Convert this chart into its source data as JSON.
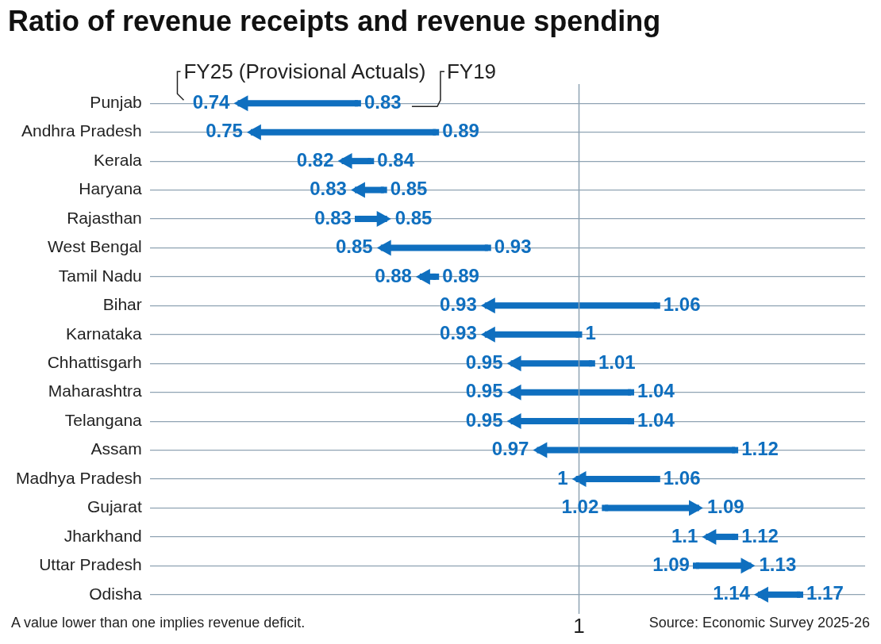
{
  "chart_data": {
    "type": "scatter",
    "orientation": "horizontal",
    "title": "Ratio of revenue receipts and revenue spending",
    "categories": [
      "Punjab",
      "Andhra Pradesh",
      "Kerala",
      "Haryana",
      "Rajasthan",
      "West Bengal",
      "Tamil Nadu",
      "Bihar",
      "Karnataka",
      "Chhattisgarh",
      "Maharashtra",
      "Telangana",
      "Assam",
      "Madhya Pradesh",
      "Gujarat",
      "Jharkhand",
      "Uttar Pradesh",
      "Odisha"
    ],
    "series": [
      {
        "name": "FY19",
        "color": "#0f6fbf",
        "values": [
          0.83,
          0.89,
          0.84,
          0.85,
          0.83,
          0.93,
          0.89,
          1.06,
          1,
          1.01,
          1.04,
          1.04,
          1.12,
          1.06,
          1.02,
          1.12,
          1.09,
          1.17
        ]
      },
      {
        "name": "FY25 (Provisional Actuals)",
        "color": "#0f6fbf",
        "values": [
          0.74,
          0.75,
          0.82,
          0.83,
          0.85,
          0.85,
          0.88,
          0.93,
          0.93,
          0.95,
          0.95,
          0.95,
          0.97,
          1,
          1.09,
          1.1,
          1.13,
          1.14
        ]
      }
    ],
    "xlim": [
      0.67,
      1.22
    ],
    "grid": "y",
    "legend": false,
    "data_labels": true,
    "ref_lines": [
      {
        "axis": "x",
        "value": 1,
        "label": "1",
        "color": "#8fa3b3"
      }
    ],
    "annotations": [
      "A value lower than one implies revenue deficit.",
      "Source: Economic Survey 2025-26"
    ]
  }
}
